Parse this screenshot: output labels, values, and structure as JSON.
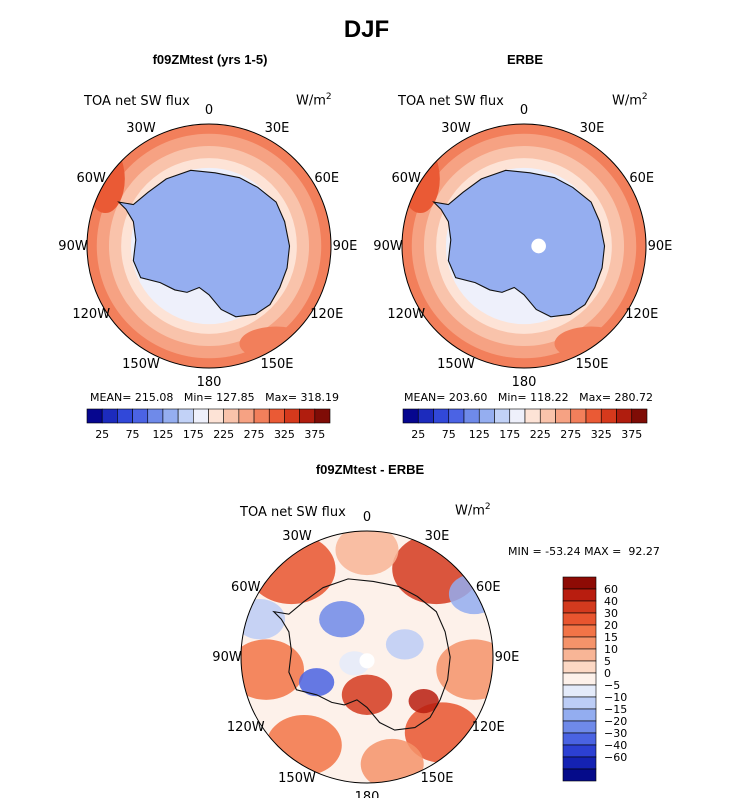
{
  "figure_title": "DJF",
  "colors": {
    "ocean_warm": "#f6b49b",
    "continent": "#88a7ef",
    "coast": "#111111"
  },
  "chart_data": [
    {
      "type": "polar_contour_map",
      "title": "f09ZMtest (yrs 1-5)",
      "variable": "TOA net SW flux",
      "units": "W/m",
      "units_exp": "2",
      "longitude_labels": [
        "0",
        "30E",
        "60E",
        "90E",
        "120E",
        "150E",
        "180",
        "150W",
        "120W",
        "90W",
        "60W",
        "30W"
      ],
      "stats": {
        "mean": "215.08",
        "min": "127.85",
        "max": "318.19"
      },
      "stats_text": "MEAN= 215.08   Min= 127.85   Max= 318.19",
      "colorbar_ticks": [
        "25",
        "75",
        "125",
        "175",
        "225",
        "275",
        "325",
        "375"
      ],
      "colorbar_colors": [
        "#06068f",
        "#1c2bbd",
        "#3148d9",
        "#4b63e4",
        "#6f8ae9",
        "#95aef0",
        "#c2d2f7",
        "#eef0fb",
        "#fde3d6",
        "#f9c3ab",
        "#f6a283",
        "#f27f5b",
        "#ea5a35",
        "#d6391c",
        "#b01d0e",
        "#7f0c06"
      ]
    },
    {
      "type": "polar_contour_map",
      "title": "ERBE",
      "variable": "TOA net SW flux",
      "units": "W/m",
      "units_exp": "2",
      "longitude_labels": [
        "0",
        "30E",
        "60E",
        "90E",
        "120E",
        "150E",
        "180",
        "150W",
        "120W",
        "90W",
        "60W",
        "30W"
      ],
      "stats": {
        "mean": "203.60",
        "min": "118.22",
        "max": "280.72"
      },
      "stats_text": "MEAN= 203.60   Min= 118.22   Max= 280.72",
      "colorbar_ticks": [
        "25",
        "75",
        "125",
        "175",
        "225",
        "275",
        "325",
        "375"
      ],
      "colorbar_colors": [
        "#06068f",
        "#1c2bbd",
        "#3148d9",
        "#4b63e4",
        "#6f8ae9",
        "#95aef0",
        "#c2d2f7",
        "#eef0fb",
        "#fde3d6",
        "#f9c3ab",
        "#f6a283",
        "#f27f5b",
        "#ea5a35",
        "#d6391c",
        "#b01d0e",
        "#7f0c06"
      ]
    },
    {
      "type": "polar_contour_map",
      "title": "f09ZMtest - ERBE",
      "variable": "TOA net SW flux",
      "units": "W/m",
      "units_exp": "2",
      "longitude_labels": [
        "0",
        "30E",
        "60E",
        "90E",
        "120E",
        "150E",
        "180",
        "150W",
        "120W",
        "90W",
        "60W",
        "30W"
      ],
      "stats": {
        "min": "-53.24",
        "max": "92.27"
      },
      "stats_text": "MIN = -53.24 MAX =  92.27",
      "colorbar_ticks": [
        "60",
        "40",
        "30",
        "20",
        "15",
        "10",
        "5",
        "0",
        "−5",
        "−10",
        "−15",
        "−20",
        "−30",
        "−40",
        "−60"
      ],
      "colorbar_colors": [
        "#8e0b05",
        "#b81d0f",
        "#d33a1e",
        "#e8552f",
        "#f27447",
        "#f5936a",
        "#f8b596",
        "#fcd8c4",
        "#fdf1ea",
        "#e4ebfa",
        "#bccdf6",
        "#93adf0",
        "#6f8ae9",
        "#4a63e2",
        "#2c40d3",
        "#1422b3",
        "#050b8a"
      ]
    }
  ]
}
